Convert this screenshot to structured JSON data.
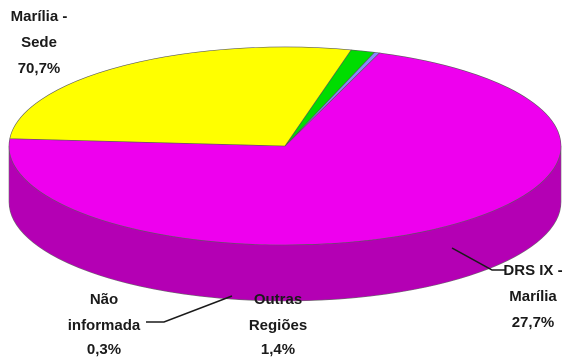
{
  "chart_data": {
    "type": "pie",
    "style": "3d",
    "slices": [
      {
        "label": "Marília - Sede",
        "value": 70.7,
        "value_label": "70,7%",
        "color": "#ee00ee",
        "side_color": "#b400b4"
      },
      {
        "label": "DRS IX - Marília",
        "value": 27.7,
        "value_label": "27,7%",
        "color": "#ffff00",
        "side_color": "#8c8c00"
      },
      {
        "label": "Outras Regiões",
        "value": 1.4,
        "value_label": "1,4%",
        "color": "#00dd00",
        "side_color": "#009a00"
      },
      {
        "label": "Não informada",
        "value": 0.3,
        "value_label": "0,3%",
        "color": "#8888ff",
        "side_color": "#6464c8"
      }
    ]
  },
  "labels": {
    "sede": [
      "Marília -",
      "Sede",
      "70,7%"
    ],
    "drs": [
      "DRS IX -",
      "Marília",
      "27,7%"
    ],
    "outras": [
      "Outras",
      "Regiões",
      "1,4%"
    ],
    "nao": [
      "Não",
      "informada",
      "0,3%"
    ]
  }
}
